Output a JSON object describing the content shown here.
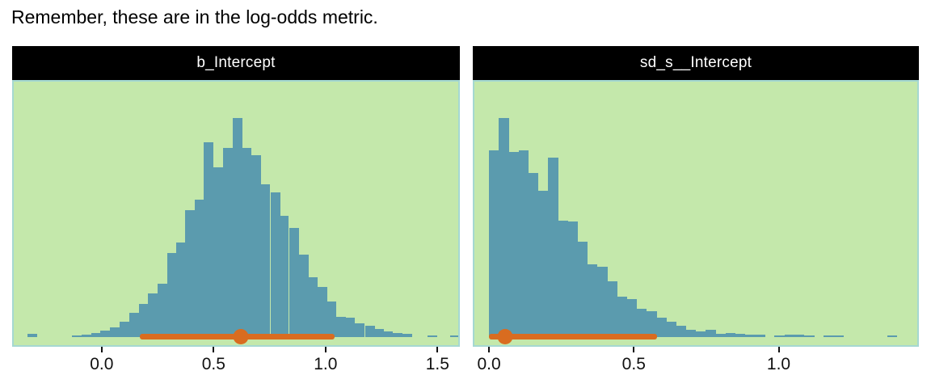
{
  "title": "Remember, these are in the log-odds metric.",
  "colors": {
    "page_bg": "#ffffff",
    "panel_bg": "#c4e8ab",
    "bar": "#5b9bae",
    "interval": "#d96c20",
    "strip_bg": "#000000",
    "strip_text": "#ffffff",
    "panel_border": "#a5d8d2",
    "axis_text": "#111111",
    "title_text": "#000000"
  },
  "chart_data": [
    {
      "type": "bar",
      "subtype": "histogram-with-interval",
      "title": "b_Intercept",
      "xlabel": "",
      "ylabel": "",
      "grid": false,
      "legend": false,
      "axis": {
        "min": -0.4,
        "max": 1.6,
        "ticks": [
          {
            "value": 0.0,
            "label": "0.0"
          },
          {
            "value": 0.5,
            "label": "0.5"
          },
          {
            "value": 1.0,
            "label": "1.0"
          },
          {
            "value": 1.5,
            "label": "1.5"
          }
        ]
      },
      "bin_width": 0.042,
      "bars_note": "pairs of [bin_left_edge_in_log_odds, height_relative_to_modal_bin]",
      "bars": [
        [
          -0.332,
          0.015
        ],
        [
          -0.133,
          0.008
        ],
        [
          -0.09,
          0.012
        ],
        [
          -0.047,
          0.018
        ],
        [
          -0.007,
          0.03
        ],
        [
          0.036,
          0.044
        ],
        [
          0.079,
          0.07
        ],
        [
          0.123,
          0.111
        ],
        [
          0.166,
          0.151
        ],
        [
          0.206,
          0.199
        ],
        [
          0.249,
          0.244
        ],
        [
          0.292,
          0.384
        ],
        [
          0.332,
          0.432
        ],
        [
          0.371,
          0.579
        ],
        [
          0.415,
          0.627
        ],
        [
          0.454,
          0.889
        ],
        [
          0.498,
          0.775
        ],
        [
          0.541,
          0.863
        ],
        [
          0.584,
          1.0
        ],
        [
          0.627,
          0.863
        ],
        [
          0.667,
          0.83
        ],
        [
          0.71,
          0.697
        ],
        [
          0.754,
          0.66
        ],
        [
          0.793,
          0.553
        ],
        [
          0.837,
          0.498
        ],
        [
          0.88,
          0.376
        ],
        [
          0.92,
          0.273
        ],
        [
          0.963,
          0.229
        ],
        [
          1.006,
          0.162
        ],
        [
          1.049,
          0.092
        ],
        [
          1.089,
          0.089
        ],
        [
          1.132,
          0.063
        ],
        [
          1.176,
          0.052
        ],
        [
          1.219,
          0.037
        ],
        [
          1.259,
          0.026
        ],
        [
          1.302,
          0.018
        ],
        [
          1.345,
          0.015
        ],
        [
          1.457,
          0.007
        ],
        [
          1.558,
          0.006
        ]
      ],
      "interval": {
        "lower": 0.17,
        "point": 0.62,
        "upper": 1.04
      }
    },
    {
      "type": "bar",
      "subtype": "histogram-with-interval",
      "title": "sd_s__Intercept",
      "xlabel": "",
      "ylabel": "",
      "grid": false,
      "legend": false,
      "axis": {
        "min": -0.056,
        "max": 1.484,
        "ticks": [
          {
            "value": 0.0,
            "label": "0.0"
          },
          {
            "value": 0.5,
            "label": "0.5"
          },
          {
            "value": 1.0,
            "label": "1.0"
          }
        ]
      },
      "bin_width": 0.034,
      "bars_note": "pairs of [bin_left_edge_in_log_odds, height_relative_to_modal_bin]",
      "bars": [
        [
          0.0,
          0.852
        ],
        [
          0.034,
          1.0
        ],
        [
          0.068,
          0.845
        ],
        [
          0.102,
          0.852
        ],
        [
          0.136,
          0.75
        ],
        [
          0.17,
          0.667
        ],
        [
          0.204,
          0.819
        ],
        [
          0.238,
          0.533
        ],
        [
          0.272,
          0.526
        ],
        [
          0.306,
          0.437
        ],
        [
          0.34,
          0.333
        ],
        [
          0.374,
          0.322
        ],
        [
          0.408,
          0.256
        ],
        [
          0.442,
          0.185
        ],
        [
          0.476,
          0.174
        ],
        [
          0.51,
          0.13
        ],
        [
          0.544,
          0.118
        ],
        [
          0.578,
          0.089
        ],
        [
          0.612,
          0.07
        ],
        [
          0.646,
          0.052
        ],
        [
          0.68,
          0.033
        ],
        [
          0.714,
          0.026
        ],
        [
          0.748,
          0.033
        ],
        [
          0.782,
          0.015
        ],
        [
          0.816,
          0.018
        ],
        [
          0.85,
          0.015
        ],
        [
          0.884,
          0.011
        ],
        [
          0.918,
          0.011
        ],
        [
          0.986,
          0.007
        ],
        [
          1.02,
          0.011
        ],
        [
          1.054,
          0.011
        ],
        [
          1.088,
          0.007
        ],
        [
          1.156,
          0.007
        ],
        [
          1.19,
          0.007
        ],
        [
          1.374,
          0.007
        ]
      ],
      "interval": {
        "lower": 0.0,
        "point": 0.056,
        "upper": 0.58
      }
    }
  ]
}
